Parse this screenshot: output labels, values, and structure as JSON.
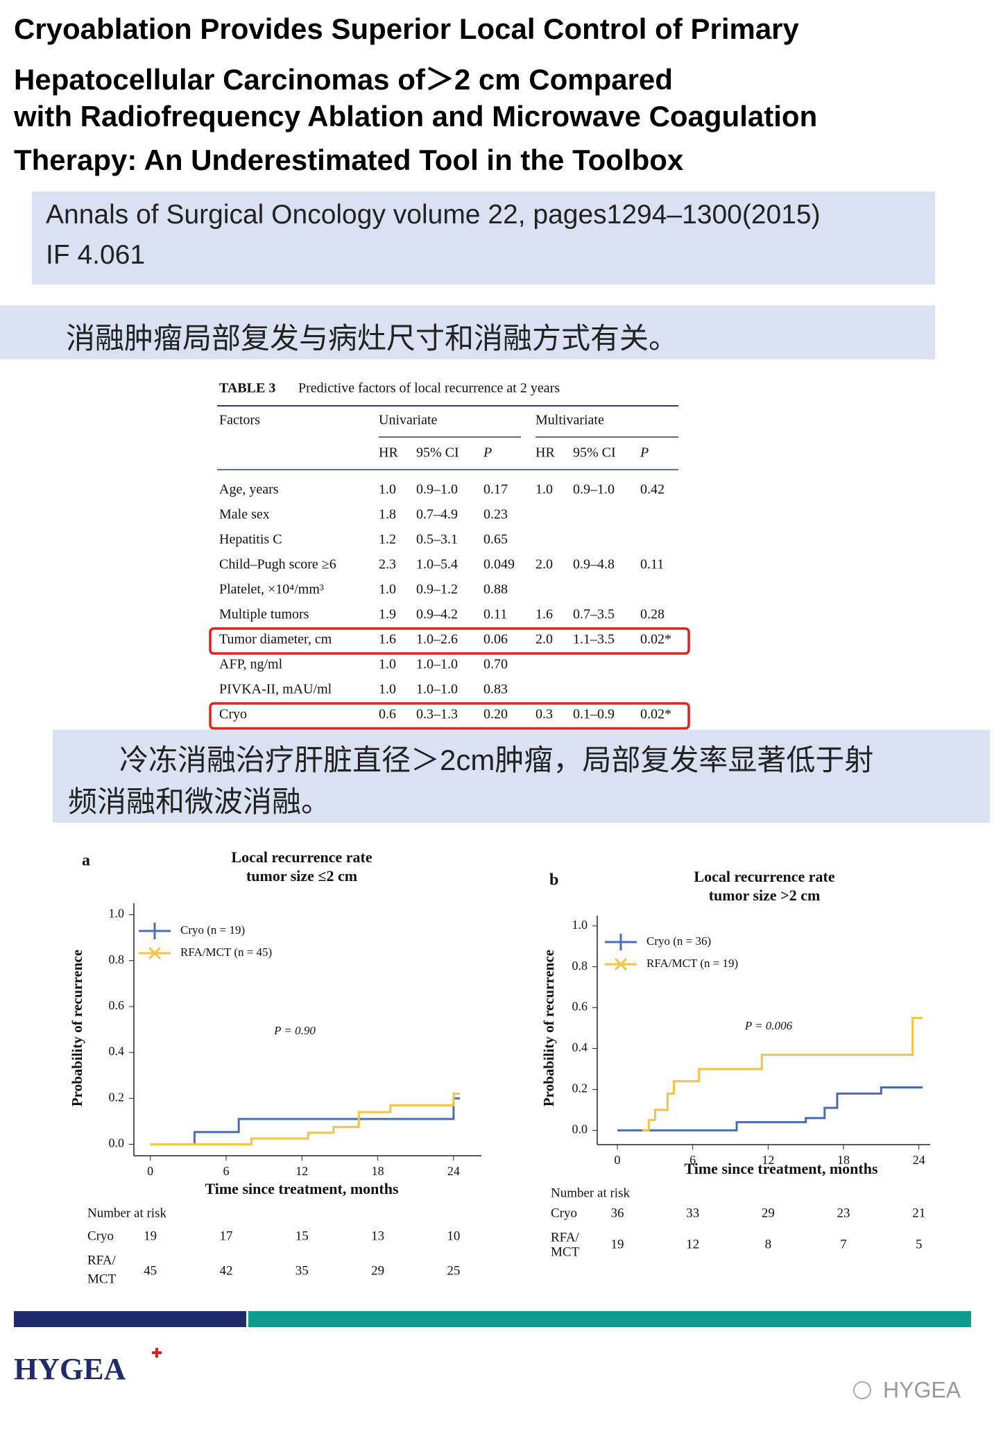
{
  "header": {
    "title": [
      "Cryoablation Provides Superior Local Control of Primary",
      "Hepatocellular Carcinomas of＞2 cm Compared",
      "with Radiofrequency Ablation and Microwave Coagulation",
      "Therapy: An Underestimated Tool in the Toolbox"
    ],
    "citation": [
      "Annals of Surgical Oncology volume 22, pages1294–1300(2015)",
      "IF 4.061"
    ]
  },
  "banner1": "消融肿瘤局部复发与病灶尺寸和消融方式有关。",
  "table": {
    "label": "TABLE 3",
    "caption": "Predictive factors of local recurrence at 2 years",
    "header": [
      "Factors",
      "Univariate",
      "Multivariate"
    ],
    "subheader": [
      "HR",
      "95% CI",
      "P",
      "HR",
      "95% CI",
      "P"
    ],
    "rows": [
      [
        "Age, years",
        "1.0",
        "0.9–1.0",
        "0.17",
        "1.0",
        "0.9–1.0",
        "0.42"
      ],
      [
        "Male sex",
        "1.8",
        "0.7–4.9",
        "0.23"
      ],
      [
        "Hepatitis C",
        "1.2",
        "0.5–3.1",
        "0.65"
      ],
      [
        "Child–Pugh score ≥6",
        "2.3",
        "1.0–5.4",
        "0.049",
        "2.0",
        "0.9–4.8",
        "0.11"
      ],
      [
        "Platelet, ×10⁴/mm³",
        "1.0",
        "0.9–1.2",
        "0.88"
      ],
      [
        "Multiple tumors",
        "1.9",
        "0.9–4.2",
        "0.11",
        "1.6",
        "0.7–3.5",
        "0.28"
      ],
      [
        "Tumor diameter, cm",
        "1.6",
        "1.0–2.6",
        "0.06",
        "2.0",
        "1.1–3.5",
        "0.02*"
      ],
      [
        "AFP, ng/ml",
        "1.0",
        "1.0–1.0",
        "0.70"
      ],
      [
        "PIVKA-II, mAU/ml",
        "1.0",
        "1.0–1.0",
        "0.83"
      ],
      [
        "Cryo",
        "0.6",
        "0.3–1.3",
        "0.20",
        "0.3",
        "0.1–0.9",
        "0.02*"
      ]
    ],
    "highlighted_rows": [
      6,
      9
    ]
  },
  "banner2": [
    "冷冻消融治疗肝脏直径＞2cm肿瘤，局部复发率显著低于射",
    "频消融和微波消融。"
  ],
  "figures": [
    {
      "type": "line",
      "panel": "a",
      "title": [
        "Local recurrence rate",
        "tumor size ≤2 cm"
      ],
      "y_label": "Probability of recurrence",
      "x_label": "Time since treatment, months",
      "annotation": "P = 0.90",
      "xlim": [
        -1.3,
        26.2
      ],
      "ylim": [
        -0.05,
        1.05
      ],
      "xticks": [
        0,
        6,
        12,
        18,
        24
      ],
      "yticks": [
        {
          "value": 0,
          "label": "0.0"
        },
        0.2,
        0.4,
        0.6,
        0.8,
        {
          "value": 1,
          "label": "1.0"
        }
      ],
      "series": [
        {
          "name": "Cryo (n = 19)",
          "color": "#4a6bb5",
          "x": [
            0,
            3.5,
            7,
            24,
            24.5
          ],
          "values": [
            0,
            0.053,
            0.11,
            0.2,
            0.2
          ]
        },
        {
          "name": "RFA/MCT (n = 45)",
          "color": "#f5c242",
          "x": [
            0,
            8,
            12.5,
            14.5,
            16.5,
            19,
            24,
            24.5
          ],
          "values": [
            0,
            0.025,
            0.05,
            0.075,
            0.14,
            0.17,
            0.22,
            0.22
          ]
        }
      ],
      "risk": {
        "label": "Number at risk",
        "rows": [
          {
            "name": [
              "Cryo"
            ],
            "values": [
              19,
              17,
              15,
              13,
              10
            ]
          },
          {
            "name": [
              "RFA/",
              "MCT"
            ],
            "values": [
              45,
              42,
              35,
              29,
              25
            ]
          }
        ]
      }
    },
    {
      "type": "line",
      "panel": "b",
      "title": [
        "Local recurrence rate",
        "tumor size >2 cm"
      ],
      "y_label": "Probability of recurrence",
      "x_label": "Time since treatment, months",
      "annotation": "P = 0.006",
      "xlim": [
        -1.6,
        24.9
      ],
      "ylim": [
        -0.07,
        1.05
      ],
      "xticks": [
        0,
        6,
        12,
        18,
        24
      ],
      "yticks": [
        {
          "value": 0,
          "label": "0.0"
        },
        0.2,
        0.4,
        0.6,
        0.8,
        {
          "value": 1,
          "label": "1.0"
        }
      ],
      "series": [
        {
          "name": "Cryo (n = 36)",
          "color": "#4a6bb5",
          "x": [
            0,
            9.5,
            15,
            16.5,
            17.5,
            21,
            24.3
          ],
          "values": [
            0,
            0.04,
            0.06,
            0.11,
            0.18,
            0.21,
            0.21
          ]
        },
        {
          "name": "RFA/MCT (n = 19)",
          "color": "#f5c242",
          "x": [
            2,
            2.5,
            3,
            4,
            4.5,
            6.5,
            11.5,
            23.5,
            24.3
          ],
          "values": [
            0,
            0.05,
            0.1,
            0.18,
            0.24,
            0.3,
            0.37,
            0.55,
            0.55
          ]
        }
      ],
      "risk": {
        "label": "Number at risk",
        "rows": [
          {
            "name": [
              "Cryo"
            ],
            "values": [
              36,
              33,
              29,
              23,
              21
            ]
          },
          {
            "name": [
              "RFA/",
              "MCT"
            ],
            "values": [
              19,
              12,
              8,
              7,
              5
            ]
          }
        ]
      }
    }
  ],
  "footer": {
    "logo": "HYGEA",
    "watermark": "HYGEA"
  }
}
